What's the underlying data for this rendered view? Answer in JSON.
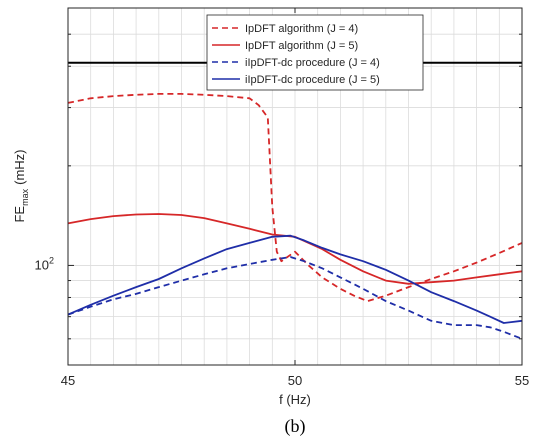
{
  "caption": "(b)",
  "chart_data": {
    "type": "line",
    "xlabel": "f (Hz)",
    "ylabel_base": "FE",
    "ylabel_sub": "max",
    "ylabel_unit": "(mHz)",
    "xlim": [
      45,
      55
    ],
    "ylim": [
      50,
      600
    ],
    "yscale": "log",
    "x_ticks": [
      "45",
      "50",
      "55"
    ],
    "y_tick_base": "10",
    "y_tick_exp": "2",
    "grid": true,
    "legend_position": "top-right",
    "threshold_line": {
      "y": 410,
      "color": "#000000"
    },
    "series": [
      {
        "name": "IpDFT algorithm (J = 4)",
        "color": "#d62728",
        "dash": "dashed",
        "x": [
          45,
          45.5,
          46,
          46.5,
          47,
          47.5,
          48,
          48.5,
          49,
          49.2,
          49.4,
          49.5,
          49.6,
          49.7,
          50,
          50.3,
          50.6,
          51,
          51.3,
          51.6,
          52,
          52.5,
          53,
          53.5,
          54,
          54.5,
          55
        ],
        "y": [
          310,
          320,
          325,
          328,
          330,
          330,
          328,
          325,
          320,
          305,
          280,
          150,
          110,
          103,
          110,
          100,
          92,
          85,
          81,
          78,
          81,
          86,
          91,
          96,
          102,
          109,
          117
        ]
      },
      {
        "name": "IpDFT algorithm (J = 5)",
        "color": "#d62728",
        "dash": "solid",
        "x": [
          45,
          45.5,
          46,
          46.5,
          47,
          47.5,
          48,
          48.5,
          49,
          49.5,
          50,
          50.3,
          50.6,
          51,
          51.5,
          52,
          52.5,
          53,
          53.5,
          54,
          54.5,
          55
        ],
        "y": [
          134,
          138,
          141,
          142.5,
          143,
          142,
          139,
          134,
          129,
          124,
          122,
          117,
          112,
          104,
          96,
          90,
          88,
          89,
          90,
          92,
          94,
          96
        ]
      },
      {
        "name": "iIpDFT-dc procedure (J = 4)",
        "color": "#1f2ea8",
        "dash": "dashed",
        "x": [
          45,
          45.5,
          46,
          46.5,
          47,
          47.5,
          48,
          48.5,
          49,
          49.5,
          49.9,
          50.2,
          50.6,
          51,
          51.5,
          52,
          52.5,
          53,
          53.5,
          54,
          54.3,
          54.6,
          55
        ],
        "y": [
          71,
          75,
          79,
          82,
          86,
          90,
          94,
          98,
          101,
          104,
          106,
          103,
          98,
          92,
          85,
          78,
          73,
          68,
          66,
          66,
          65,
          63,
          60
        ]
      },
      {
        "name": "iIpDFT-dc procedure (J = 5)",
        "color": "#1f2ea8",
        "dash": "solid",
        "x": [
          45,
          45.5,
          46,
          46.5,
          47,
          47.5,
          48,
          48.5,
          49,
          49.5,
          49.9,
          50.2,
          50.6,
          51,
          51.5,
          52,
          52.5,
          53,
          53.5,
          54,
          54.3,
          54.6,
          55
        ],
        "y": [
          71,
          76,
          81,
          86,
          91,
          98,
          105,
          112,
          117,
          122,
          123,
          119,
          113,
          108,
          103,
          97,
          90,
          83,
          78,
          73,
          70,
          67,
          68
        ]
      }
    ]
  }
}
